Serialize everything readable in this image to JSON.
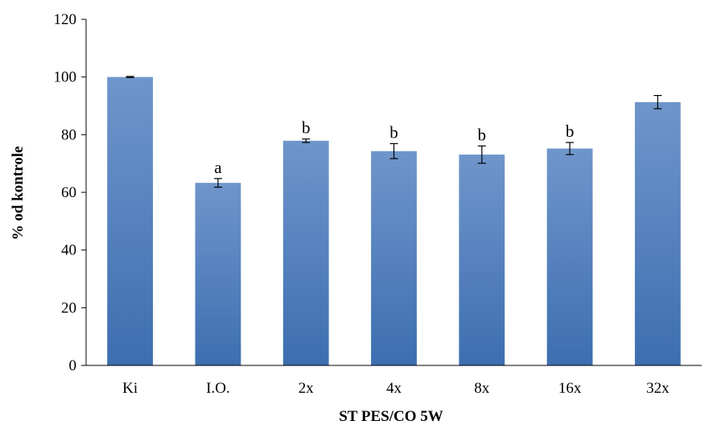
{
  "chart_data": {
    "type": "bar",
    "title": "",
    "xlabel": "ST  PES/CO  5W",
    "ylabel": "% od kontrole",
    "categories": [
      "Ki",
      "I.O.",
      "2x",
      "4x",
      "8x",
      "16x",
      "32x"
    ],
    "values": [
      100,
      63.3,
      77.9,
      74.3,
      73.1,
      75.2,
      91.3
    ],
    "errors": [
      0.2,
      1.5,
      0.6,
      2.6,
      3.0,
      2.1,
      2.3
    ],
    "annotations": [
      "",
      "a",
      "b",
      "b",
      "b",
      "b",
      ""
    ],
    "ylim": [
      0,
      120
    ],
    "yticks": [
      0,
      20,
      40,
      60,
      80,
      100,
      120
    ],
    "grid": false,
    "legend": "none",
    "colors": {
      "bar_top": "#6F96CB",
      "bar_bottom": "#3D6EB0",
      "axis": "#000000"
    }
  }
}
